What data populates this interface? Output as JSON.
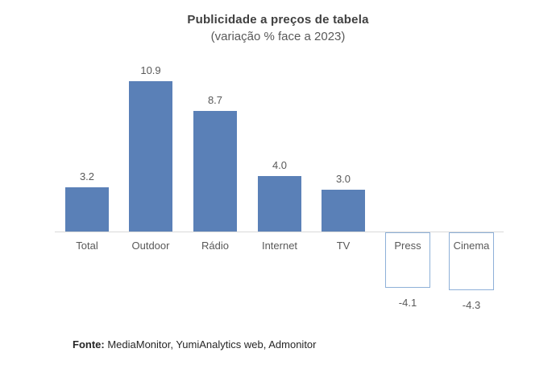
{
  "header": {
    "title": "Publicidade a preços de tabela",
    "subtitle": "(variação % face a 2023)"
  },
  "footer": {
    "source_label": "Fonte:",
    "source_text": " MediaMonitor, YumiAnalytics web, Admonitor"
  },
  "chart_data": {
    "type": "bar",
    "title": "Publicidade a preços de tabela",
    "subtitle": "(variação % face a 2023)",
    "categories": [
      "Total",
      "Outdoor",
      "Rádio",
      "Internet",
      "TV",
      "Press",
      "Cinema"
    ],
    "values": [
      3.2,
      10.9,
      8.7,
      4.0,
      3.0,
      -4.1,
      -4.3
    ],
    "values_display": [
      "3.2",
      "10.9",
      "8.7",
      "4.0",
      "3.0",
      "-4.1",
      "-4.3"
    ],
    "xlabel": "",
    "ylabel": "variação % face a 2023",
    "ylim": [
      -5,
      12
    ],
    "grid": false,
    "legend": false,
    "data_labels": true,
    "colors": {
      "bar_positive_fill": "#5A80B7",
      "bar_negative_fill": "#FFFFFF",
      "bar_negative_border": "#8EB0D8",
      "axis_line": "#D9D9D9",
      "label_text": "#595959",
      "title_text": "#404040"
    }
  }
}
